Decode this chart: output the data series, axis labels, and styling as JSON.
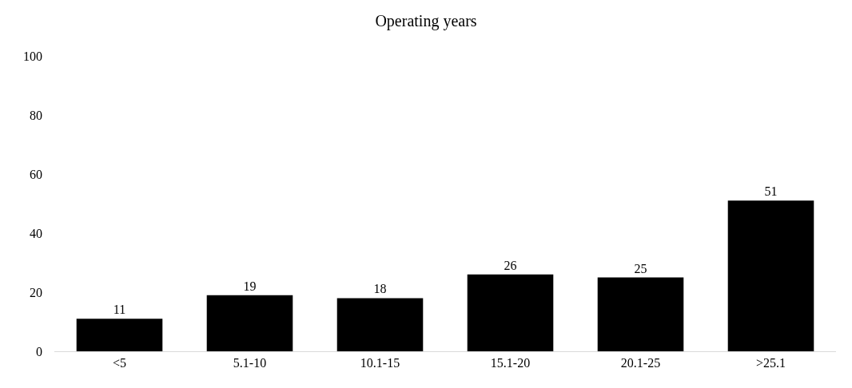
{
  "chart_data": {
    "type": "bar",
    "title": "Operating years",
    "categories": [
      "<5",
      "5.1-10",
      "10.1-15",
      "15.1-20",
      "20.1-25",
      ">25.1"
    ],
    "values": [
      11,
      19,
      18,
      26,
      25,
      51
    ],
    "color": "#000000",
    "ylim": [
      0,
      100
    ],
    "yticks": [
      0,
      20,
      40,
      60,
      80,
      100
    ],
    "grid": false,
    "data_labels": true
  }
}
